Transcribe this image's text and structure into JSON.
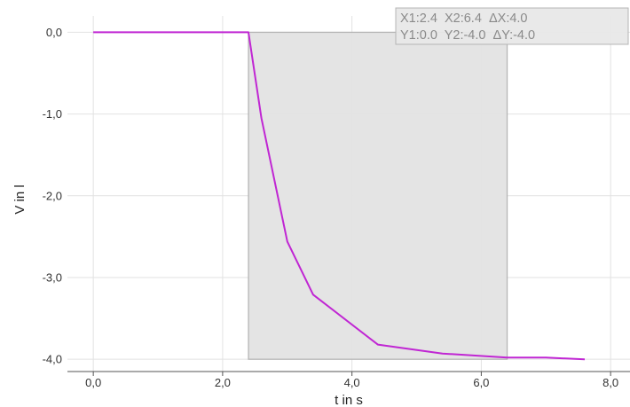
{
  "chart_data": {
    "type": "line",
    "xlabel": "t in s",
    "ylabel": "V in l",
    "xlim": [
      -0.4,
      8.3
    ],
    "ylim": [
      -4.15,
      0.2
    ],
    "x_ticks": [
      0,
      2,
      4,
      6,
      8
    ],
    "y_ticks": [
      0,
      -1,
      -2,
      -3,
      -4
    ],
    "x_tick_labels": [
      "0,0",
      "2,0",
      "4,0",
      "6,0",
      "8,0"
    ],
    "y_tick_labels": [
      "0,0",
      "-1,0",
      "-2,0",
      "-3,0",
      "-4,0"
    ],
    "grid": true,
    "series": [
      {
        "color": "#c026d3",
        "x": [
          0.0,
          2.4,
          2.6,
          3.0,
          3.4,
          4.4,
          5.4,
          6.4,
          7.0,
          7.6
        ],
        "y": [
          0.0,
          0.0,
          -1.05,
          -2.56,
          -3.21,
          -3.82,
          -3.93,
          -3.98,
          -3.98,
          -4.0
        ]
      }
    ],
    "selection": {
      "x1": 2.4,
      "x2": 6.4,
      "y1": 0.0,
      "y2": -4.0,
      "fill": "#e3e3e3",
      "stroke": "#b5b5b5"
    },
    "readout": {
      "line1": "X1:2.4  X2:6.4  ΔX:4.0",
      "line2": "Y1:0.0  Y2:-4.0  ΔY:-4.0"
    }
  }
}
